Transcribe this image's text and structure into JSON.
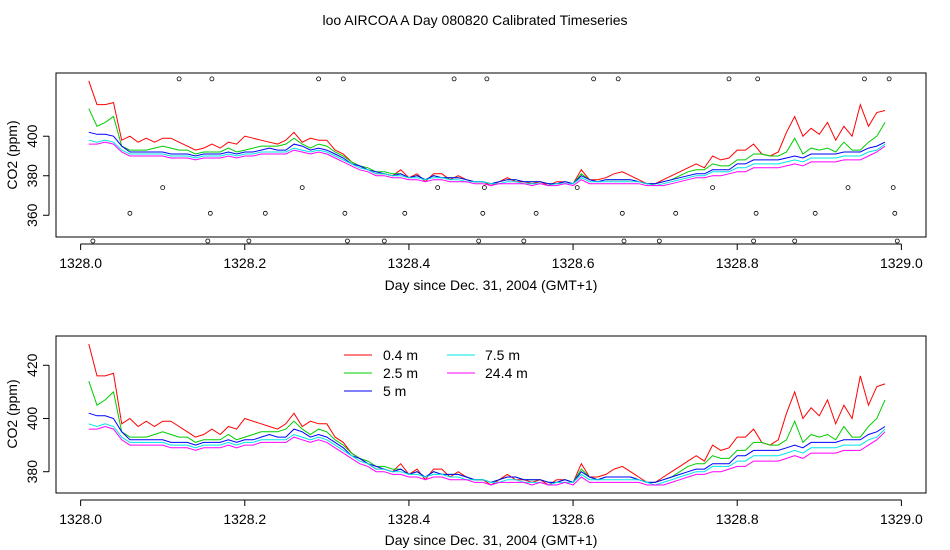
{
  "page": {
    "title": "loo AIRCOA A  Day 080820  Calibrated Timeseries"
  },
  "chart_data": [
    {
      "type": "line",
      "ylabel": "CO2 (ppm)",
      "xlabel": "Day since Dec. 31, 2004 (GMT+1)",
      "xlim": [
        1327.97,
        1329.03
      ],
      "ylim": [
        349,
        432
      ],
      "xticks": [
        1328.0,
        1328.2,
        1328.4,
        1328.6,
        1328.8,
        1329.0
      ],
      "xtick_labels": [
        "1328.0",
        "1328.2",
        "1328.4",
        "1328.6",
        "1328.8",
        "1329.0"
      ],
      "yticks": [
        360,
        380,
        400
      ],
      "ytick_labels": [
        "360",
        "380",
        "400"
      ],
      "grid": false,
      "legend": "none",
      "colors": [
        "#ff0000",
        "#00cc00",
        "#0000ff",
        "#00e5e5",
        "#ff00ff"
      ],
      "x": [
        1328.01,
        1328.02,
        1328.03,
        1328.04,
        1328.05,
        1328.06,
        1328.07,
        1328.08,
        1328.09,
        1328.1,
        1328.11,
        1328.12,
        1328.13,
        1328.14,
        1328.15,
        1328.16,
        1328.17,
        1328.18,
        1328.19,
        1328.2,
        1328.21,
        1328.22,
        1328.23,
        1328.24,
        1328.25,
        1328.26,
        1328.27,
        1328.28,
        1328.29,
        1328.3,
        1328.31,
        1328.32,
        1328.33,
        1328.34,
        1328.35,
        1328.36,
        1328.37,
        1328.38,
        1328.39,
        1328.4,
        1328.41,
        1328.42,
        1328.43,
        1328.44,
        1328.45,
        1328.46,
        1328.47,
        1328.48,
        1328.49,
        1328.5,
        1328.51,
        1328.52,
        1328.53,
        1328.54,
        1328.55,
        1328.56,
        1328.57,
        1328.58,
        1328.59,
        1328.6,
        1328.61,
        1328.62,
        1328.63,
        1328.64,
        1328.65,
        1328.66,
        1328.67,
        1328.68,
        1328.69,
        1328.7,
        1328.71,
        1328.72,
        1328.73,
        1328.74,
        1328.75,
        1328.76,
        1328.77,
        1328.78,
        1328.79,
        1328.8,
        1328.81,
        1328.82,
        1328.83,
        1328.84,
        1328.85,
        1328.86,
        1328.87,
        1328.88,
        1328.89,
        1328.9,
        1328.91,
        1328.92,
        1328.93,
        1328.94,
        1328.95,
        1328.96,
        1328.97,
        1328.98
      ],
      "series": [
        {
          "values": [
            428,
            416,
            416,
            417,
            398,
            400,
            397,
            399,
            397,
            399,
            399,
            397,
            395,
            393,
            394,
            396,
            394,
            397,
            396,
            400,
            399,
            398,
            397,
            396,
            398,
            402,
            397,
            399,
            398,
            398,
            393,
            391,
            387,
            385,
            383,
            381,
            381,
            380,
            383,
            379,
            381,
            377,
            381,
            381,
            378,
            380,
            378,
            377,
            377,
            375,
            377,
            379,
            377,
            377,
            376,
            377,
            375,
            377,
            377,
            376,
            383,
            378,
            378,
            379,
            381,
            382,
            380,
            378,
            376,
            376,
            378,
            380,
            382,
            384,
            386,
            384,
            390,
            388,
            389,
            393,
            393,
            396,
            391,
            390,
            392,
            402,
            410,
            400,
            404,
            401,
            407,
            398,
            405,
            400,
            416,
            405,
            412,
            413
          ]
        },
        {
          "values": [
            414,
            405,
            407,
            410,
            395,
            393,
            393,
            393,
            394,
            395,
            394,
            393,
            393,
            391,
            392,
            392,
            392,
            394,
            392,
            393,
            394,
            395,
            395,
            395,
            396,
            399,
            396,
            394,
            396,
            395,
            392,
            390,
            387,
            385,
            384,
            382,
            382,
            381,
            381,
            379,
            380,
            378,
            380,
            379,
            379,
            379,
            378,
            377,
            377,
            376,
            377,
            378,
            378,
            377,
            377,
            377,
            376,
            376,
            377,
            376,
            381,
            378,
            377,
            378,
            378,
            378,
            378,
            377,
            376,
            376,
            377,
            378,
            380,
            382,
            383,
            383,
            386,
            385,
            385,
            388,
            388,
            391,
            391,
            390,
            390,
            392,
            399,
            391,
            394,
            393,
            394,
            392,
            397,
            393,
            393,
            397,
            400,
            407
          ]
        },
        {
          "values": [
            402,
            401,
            401,
            400,
            395,
            392,
            392,
            392,
            392,
            392,
            391,
            391,
            391,
            390,
            391,
            391,
            391,
            392,
            391,
            392,
            392,
            393,
            394,
            393,
            393,
            396,
            395,
            393,
            394,
            393,
            391,
            389,
            386,
            385,
            383,
            382,
            381,
            380,
            381,
            379,
            380,
            378,
            380,
            379,
            379,
            379,
            378,
            377,
            377,
            376,
            377,
            378,
            378,
            377,
            377,
            377,
            376,
            376,
            377,
            376,
            380,
            378,
            377,
            378,
            378,
            378,
            378,
            377,
            376,
            376,
            377,
            378,
            379,
            380,
            381,
            381,
            383,
            383,
            383,
            386,
            386,
            388,
            388,
            388,
            388,
            389,
            390,
            389,
            391,
            391,
            391,
            391,
            392,
            392,
            392,
            394,
            395,
            397
          ]
        },
        {
          "values": [
            398,
            397,
            398,
            397,
            393,
            391,
            391,
            391,
            391,
            391,
            390,
            390,
            390,
            389,
            390,
            390,
            390,
            391,
            390,
            391,
            391,
            392,
            392,
            392,
            392,
            394,
            393,
            392,
            393,
            392,
            390,
            388,
            386,
            384,
            383,
            381,
            381,
            380,
            380,
            379,
            379,
            378,
            379,
            379,
            378,
            378,
            377,
            377,
            377,
            376,
            376,
            377,
            377,
            376,
            376,
            376,
            375,
            376,
            376,
            376,
            379,
            377,
            377,
            377,
            377,
            377,
            377,
            377,
            376,
            375,
            376,
            377,
            378,
            379,
            380,
            380,
            382,
            382,
            382,
            384,
            384,
            386,
            386,
            386,
            386,
            387,
            388,
            387,
            389,
            389,
            389,
            389,
            390,
            390,
            390,
            392,
            393,
            396
          ]
        },
        {
          "values": [
            396,
            396,
            397,
            396,
            392,
            390,
            390,
            390,
            390,
            390,
            389,
            389,
            389,
            388,
            389,
            389,
            389,
            390,
            389,
            390,
            390,
            391,
            391,
            391,
            391,
            393,
            392,
            391,
            392,
            391,
            389,
            387,
            385,
            383,
            382,
            380,
            380,
            379,
            379,
            378,
            378,
            377,
            378,
            378,
            377,
            377,
            377,
            376,
            376,
            375,
            376,
            376,
            376,
            376,
            375,
            376,
            375,
            375,
            376,
            375,
            378,
            376,
            376,
            376,
            376,
            376,
            376,
            376,
            375,
            375,
            375,
            376,
            377,
            378,
            379,
            379,
            380,
            380,
            381,
            382,
            382,
            384,
            384,
            384,
            384,
            385,
            386,
            385,
            387,
            387,
            387,
            387,
            388,
            388,
            388,
            390,
            392,
            395
          ]
        }
      ],
      "markers": [
        {
          "x": 1328.015,
          "y": 347
        },
        {
          "x": 1328.06,
          "y": 361
        },
        {
          "x": 1328.1,
          "y": 374
        },
        {
          "x": 1328.12,
          "y": 429
        },
        {
          "x": 1328.155,
          "y": 347
        },
        {
          "x": 1328.158,
          "y": 361
        },
        {
          "x": 1328.16,
          "y": 429
        },
        {
          "x": 1328.205,
          "y": 347
        },
        {
          "x": 1328.225,
          "y": 361
        },
        {
          "x": 1328.27,
          "y": 374
        },
        {
          "x": 1328.29,
          "y": 429
        },
        {
          "x": 1328.32,
          "y": 429
        },
        {
          "x": 1328.322,
          "y": 361
        },
        {
          "x": 1328.325,
          "y": 347
        },
        {
          "x": 1328.37,
          "y": 347
        },
        {
          "x": 1328.395,
          "y": 361
        },
        {
          "x": 1328.435,
          "y": 374
        },
        {
          "x": 1328.455,
          "y": 429
        },
        {
          "x": 1328.485,
          "y": 347
        },
        {
          "x": 1328.49,
          "y": 361
        },
        {
          "x": 1328.492,
          "y": 374
        },
        {
          "x": 1328.495,
          "y": 429
        },
        {
          "x": 1328.54,
          "y": 347
        },
        {
          "x": 1328.555,
          "y": 361
        },
        {
          "x": 1328.605,
          "y": 374
        },
        {
          "x": 1328.625,
          "y": 429
        },
        {
          "x": 1328.655,
          "y": 429
        },
        {
          "x": 1328.66,
          "y": 361
        },
        {
          "x": 1328.662,
          "y": 347
        },
        {
          "x": 1328.705,
          "y": 347
        },
        {
          "x": 1328.725,
          "y": 361
        },
        {
          "x": 1328.77,
          "y": 374
        },
        {
          "x": 1328.79,
          "y": 429
        },
        {
          "x": 1328.82,
          "y": 347
        },
        {
          "x": 1328.823,
          "y": 361
        },
        {
          "x": 1328.825,
          "y": 429
        },
        {
          "x": 1328.87,
          "y": 347
        },
        {
          "x": 1328.895,
          "y": 361
        },
        {
          "x": 1328.935,
          "y": 374
        },
        {
          "x": 1328.955,
          "y": 429
        },
        {
          "x": 1328.985,
          "y": 429
        },
        {
          "x": 1328.99,
          "y": 374
        },
        {
          "x": 1328.992,
          "y": 361
        },
        {
          "x": 1328.995,
          "y": 347
        }
      ]
    },
    {
      "type": "line",
      "ylabel": "CO2 (ppm)",
      "xlabel": "Day since Dec. 31, 2004 (GMT+1)",
      "xlim": [
        1327.97,
        1329.03
      ],
      "ylim": [
        372,
        431
      ],
      "xticks": [
        1328.0,
        1328.2,
        1328.4,
        1328.6,
        1328.8,
        1329.0
      ],
      "xtick_labels": [
        "1328.0",
        "1328.2",
        "1328.4",
        "1328.6",
        "1328.8",
        "1329.0"
      ],
      "yticks": [
        380,
        400,
        420
      ],
      "ytick_labels": [
        "380",
        "400",
        "420"
      ],
      "grid": false,
      "legend": "top-left",
      "colors": [
        "#ff0000",
        "#00cc00",
        "#0000ff",
        "#00e5e5",
        "#ff00ff"
      ],
      "legend_entries": [
        "0.4 m",
        "2.5 m",
        "5 m",
        "7.5 m",
        "24.4 m"
      ],
      "series_ref": "same series values as the first panel"
    }
  ]
}
